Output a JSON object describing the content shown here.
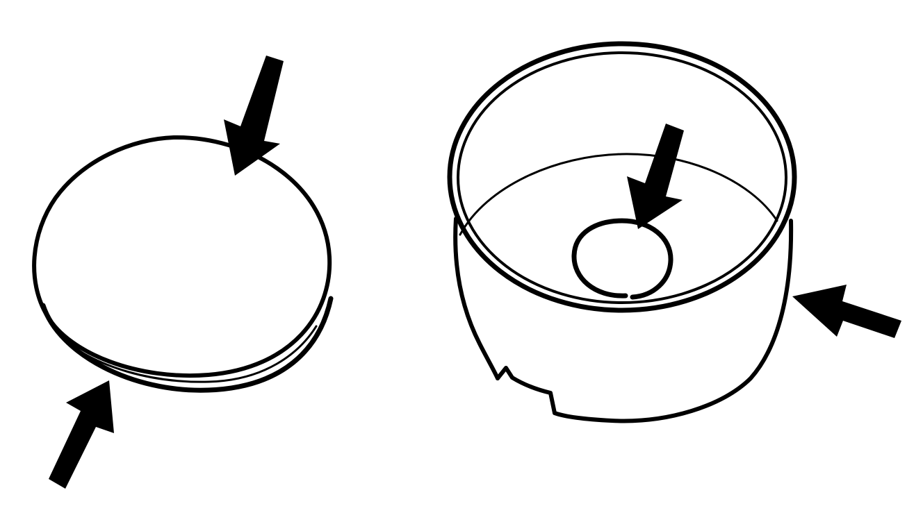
{
  "diagram": {
    "parts": [
      {
        "name": "disc",
        "arrow_count": 2
      },
      {
        "name": "cup",
        "arrow_count": 2
      }
    ],
    "colors": {
      "ink": "#000000",
      "background": "#ffffff"
    }
  }
}
